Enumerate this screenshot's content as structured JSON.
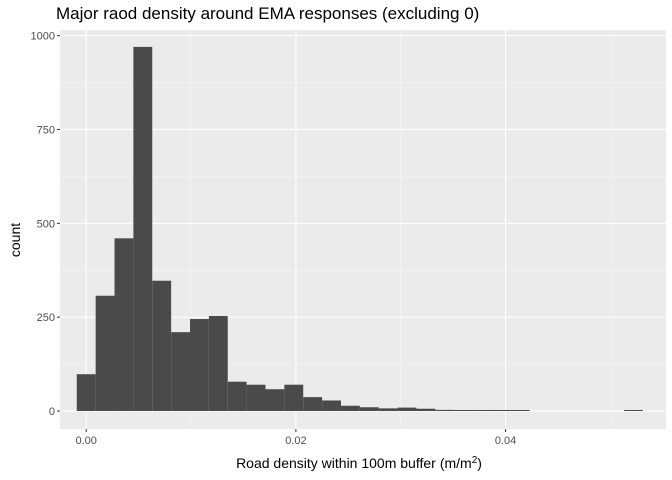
{
  "chart_data": {
    "type": "bar",
    "title": "Major raod density around EMA responses (excluding 0)",
    "xlabel": "Road density within 100m buffer",
    "xlabel_unit_prefix": "(m/m",
    "xlabel_unit_superscript": "2",
    "xlabel_unit_suffix": ")",
    "ylabel": "count",
    "xlim": [
      -0.0025,
      0.0553
    ],
    "ylim": [
      -48,
      1015
    ],
    "x_ticks": [
      0.0,
      0.02,
      0.04
    ],
    "x_tick_labels": [
      "0.00",
      "0.02",
      "0.04"
    ],
    "y_ticks": [
      0,
      250,
      500,
      750,
      1000
    ],
    "y_tick_labels": [
      "0",
      "250",
      "500",
      "750",
      "1000"
    ],
    "bin_width": 0.0018,
    "bin_starts": [
      -0.0009,
      0.0009,
      0.0027,
      0.0045,
      0.0063,
      0.0081,
      0.0099,
      0.0117,
      0.0135,
      0.0153,
      0.0171,
      0.0189,
      0.0207,
      0.0225,
      0.0243,
      0.0261,
      0.0279,
      0.0297,
      0.0315,
      0.0333,
      0.0351,
      0.0369,
      0.0387,
      0.0405,
      0.0423,
      0.0441,
      0.0459,
      0.0477,
      0.0495,
      0.0513
    ],
    "values": [
      98,
      307,
      460,
      970,
      347,
      210,
      245,
      253,
      78,
      70,
      58,
      70,
      37,
      28,
      14,
      10,
      7,
      9,
      6,
      3,
      2,
      1,
      1,
      1,
      0,
      0,
      0,
      0,
      0,
      1
    ],
    "grid": true,
    "background": "#EBEBEB",
    "bar_color": "#4A4A4A",
    "grid_major_color": "#FFFFFF",
    "grid_minor_color": "#F5F5F5"
  }
}
